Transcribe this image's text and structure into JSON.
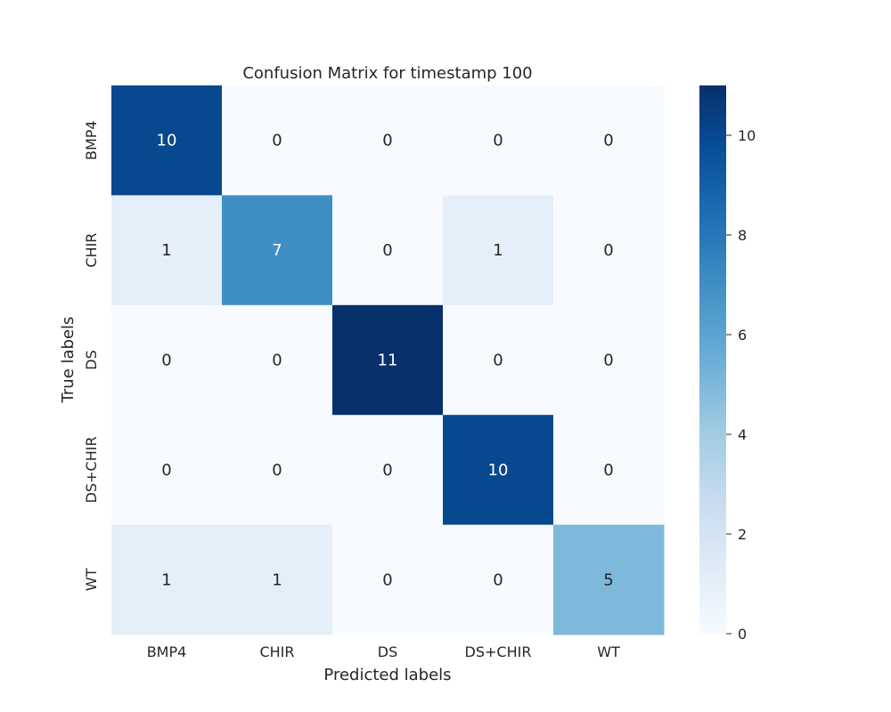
{
  "chart_data": {
    "type": "heatmap",
    "title": "Confusion Matrix for timestamp 100",
    "xlabel": "Predicted labels",
    "ylabel": "True labels",
    "x_categories": [
      "BMP4",
      "CHIR",
      "DS",
      "DS+CHIR",
      "WT"
    ],
    "y_categories": [
      "BMP4",
      "CHIR",
      "DS",
      "DS+CHIR",
      "WT"
    ],
    "values": [
      [
        10,
        0,
        0,
        0,
        0
      ],
      [
        1,
        7,
        0,
        1,
        0
      ],
      [
        0,
        0,
        11,
        0,
        0
      ],
      [
        0,
        0,
        0,
        10,
        0
      ],
      [
        1,
        1,
        0,
        0,
        5
      ]
    ],
    "colorbar": {
      "range": [
        0,
        11
      ],
      "ticks": [
        0,
        2,
        4,
        6,
        8,
        10
      ]
    },
    "colormap": "Blues",
    "colors": {
      "low": "#f7fbff",
      "high": "#08306b"
    }
  }
}
